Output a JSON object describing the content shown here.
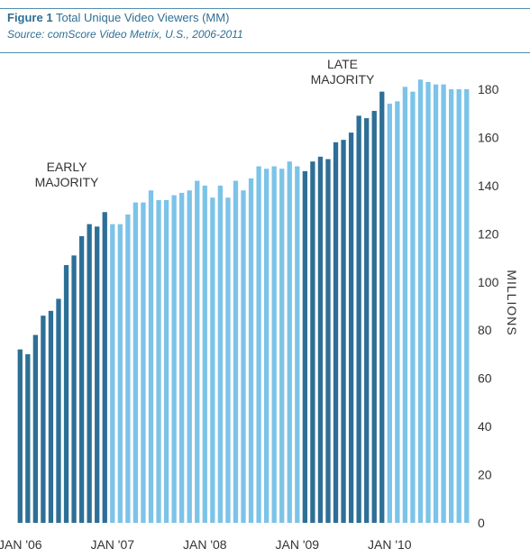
{
  "figure": {
    "title_prefix": "Figure 1",
    "title": "Total Unique Video Viewers (MM)",
    "source": "Source: comScore Video Metrix, U.S., 2006-2011"
  },
  "chart_data": {
    "type": "bar",
    "title": "Total Unique Video Viewers (MM)",
    "ylabel": "MILLIONS",
    "ylim": [
      0,
      180
    ],
    "yticks": [
      0,
      20,
      40,
      60,
      80,
      100,
      120,
      140,
      160,
      180
    ],
    "xtick_labels": [
      "JAN '06",
      "JAN '07",
      "JAN '08",
      "JAN '09",
      "JAN '10"
    ],
    "annotations": [
      {
        "lines": [
          "EARLY",
          "MAJORITY"
        ]
      },
      {
        "lines": [
          "LATE",
          "MAJORITY"
        ]
      }
    ],
    "colors": {
      "dark": "#2d6f96",
      "light": "#7cc3e8"
    },
    "series": [
      {
        "values": [
          72,
          70,
          78,
          86,
          88,
          93,
          107,
          111,
          119,
          124,
          123,
          129,
          124,
          124,
          128,
          133,
          133,
          138,
          134,
          134,
          136,
          137,
          138,
          142,
          140,
          135,
          140,
          135,
          142,
          138,
          143,
          148,
          147,
          148,
          147,
          150,
          148,
          146,
          150,
          152,
          151,
          158,
          159,
          162,
          169,
          168,
          171,
          179,
          174,
          175,
          181,
          179,
          184,
          183,
          182,
          182,
          180,
          180,
          180
        ],
        "colors": [
          "dark",
          "dark",
          "dark",
          "dark",
          "dark",
          "dark",
          "dark",
          "dark",
          "dark",
          "dark",
          "dark",
          "dark",
          "light",
          "light",
          "light",
          "light",
          "light",
          "light",
          "light",
          "light",
          "light",
          "light",
          "light",
          "light",
          "light",
          "light",
          "light",
          "light",
          "light",
          "light",
          "light",
          "light",
          "light",
          "light",
          "light",
          "light",
          "light",
          "dark",
          "dark",
          "dark",
          "dark",
          "dark",
          "dark",
          "dark",
          "dark",
          "dark",
          "dark",
          "dark",
          "light",
          "light",
          "light",
          "light",
          "light",
          "light",
          "light",
          "light",
          "light",
          "light",
          "light"
        ]
      }
    ]
  }
}
